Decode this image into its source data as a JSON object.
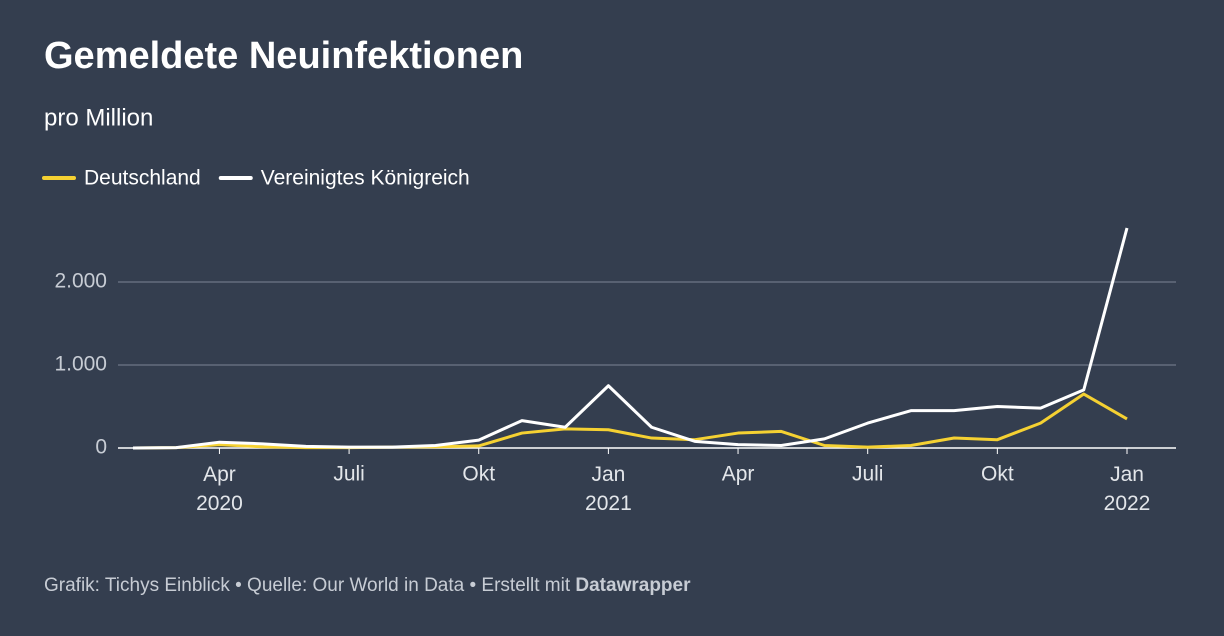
{
  "chart_data": {
    "type": "line",
    "title": "Gemeldete Neuinfektionen",
    "subtitle": "pro Million",
    "x": [
      "2020-02",
      "2020-03",
      "2020-04",
      "2020-05",
      "2020-06",
      "2020-07",
      "2020-08",
      "2020-09",
      "2020-10",
      "2020-11",
      "2020-12",
      "2021-01",
      "2021-02",
      "2021-03",
      "2021-04",
      "2021-05",
      "2021-06",
      "2021-07",
      "2021-08",
      "2021-09",
      "2021-10",
      "2021-11",
      "2021-12",
      "2022-01"
    ],
    "series": [
      {
        "name": "Deutschland",
        "color": "#f5d132",
        "values": [
          0,
          5,
          40,
          15,
          5,
          5,
          10,
          15,
          25,
          180,
          230,
          220,
          120,
          100,
          180,
          200,
          30,
          10,
          30,
          120,
          100,
          300,
          650,
          350
        ]
      },
      {
        "name": "Vereinigtes Königreich",
        "color": "#ffffff",
        "values": [
          0,
          5,
          70,
          50,
          20,
          10,
          10,
          30,
          95,
          330,
          250,
          750,
          250,
          80,
          40,
          30,
          110,
          300,
          450,
          450,
          500,
          480,
          700,
          2650
        ]
      }
    ],
    "xlim": [
      "2020-02",
      "2022-01"
    ],
    "xticks": [
      {
        "value": "2020-04",
        "label": "Apr 2020"
      },
      {
        "value": "2020-07",
        "label": "Juli"
      },
      {
        "value": "2020-10",
        "label": "Okt"
      },
      {
        "value": "2021-01",
        "label": "Jan 2021"
      },
      {
        "value": "2021-04",
        "label": "Apr"
      },
      {
        "value": "2021-07",
        "label": "Juli"
      },
      {
        "value": "2021-10",
        "label": "Okt"
      },
      {
        "value": "2022-01",
        "label": "Jan 2022"
      }
    ],
    "ylim": [
      0,
      2700
    ],
    "yticks": [
      0,
      {
        "value": 1000,
        "label": "1.000"
      },
      {
        "value": 2000,
        "label": "2.000"
      }
    ],
    "grid": true,
    "footer": {
      "text": "Grafik: Tichys Einblick • Quelle: Our World in Data • Erstellt mit",
      "credit": "Datawrapper"
    }
  }
}
